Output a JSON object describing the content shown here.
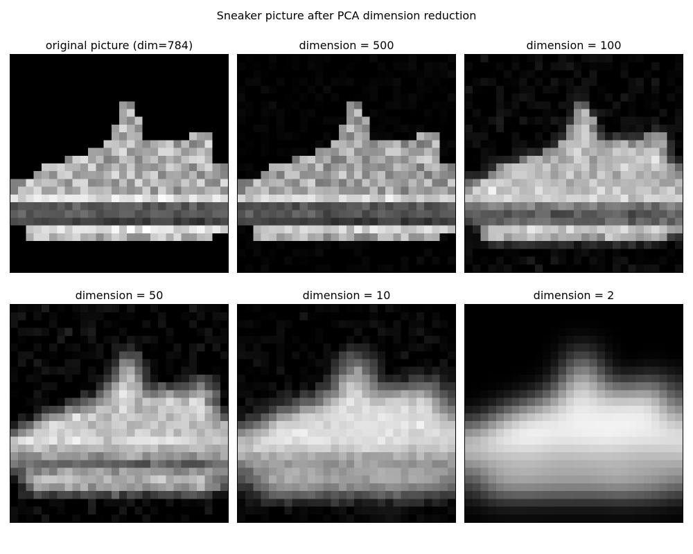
{
  "figure": {
    "title": "Sneaker picture after PCA dimension reduction",
    "image_size": 28,
    "panels": [
      {
        "title": "original picture (dim=784)",
        "dimension": 784
      },
      {
        "title": "dimension = 500",
        "dimension": 500
      },
      {
        "title": "dimension = 100",
        "dimension": 100
      },
      {
        "title": "dimension = 50",
        "dimension": 50
      },
      {
        "title": "dimension = 10",
        "dimension": 10
      },
      {
        "title": "dimension = 2",
        "dimension": 2
      }
    ],
    "colormap": "gray",
    "background_color": "#000000"
  }
}
